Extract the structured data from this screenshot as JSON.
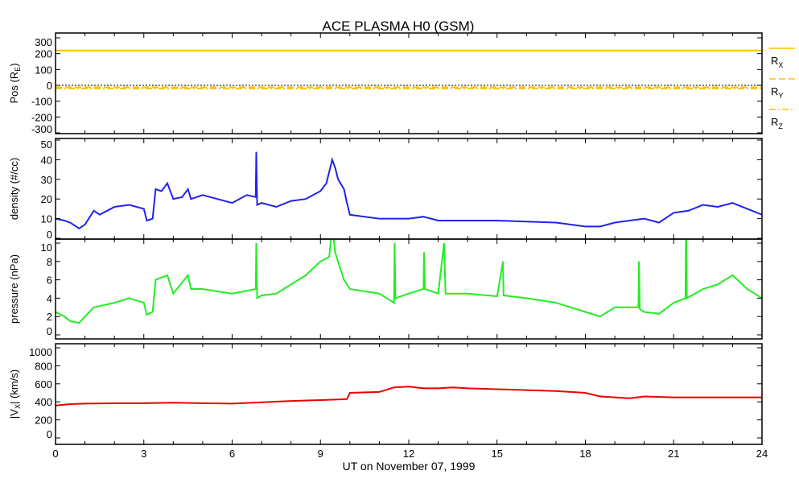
{
  "chart_data": {
    "type": "line",
    "title": "ACE PLASMA H0 (GSM)",
    "xlabel": "UT on November 07, 1999",
    "xlim": [
      0,
      24
    ],
    "xticks": [
      0,
      3,
      6,
      9,
      12,
      15,
      18,
      21,
      24
    ],
    "panels": [
      {
        "id": "position",
        "ylabel": {
          "pre": "Pos (R",
          "sub": "E",
          "post": ")"
        },
        "ylim": [
          -330,
          330
        ],
        "yticks": [
          -300,
          -200,
          -100,
          0,
          100,
          200,
          300
        ],
        "zero_line": true,
        "legend": [
          {
            "main": "R",
            "sub": "X",
            "dash": "solid"
          },
          {
            "main": "R",
            "sub": "Y",
            "dash": "dashed"
          },
          {
            "main": "R",
            "sub": "Z",
            "dash": "dashdot"
          }
        ],
        "series": [
          {
            "name": "Rx",
            "color": "#ffc000",
            "dash": "solid",
            "x": [
              0,
              24
            ],
            "y": [
              220,
              220
            ]
          },
          {
            "name": "Ry",
            "color": "#ffc000",
            "dash": "dashed",
            "x": [
              0,
              24
            ],
            "y": [
              -12,
              -12
            ]
          },
          {
            "name": "Rz",
            "color": "#ffc000",
            "dash": "dashdot",
            "x": [
              0,
              24
            ],
            "y": [
              -20,
              -20
            ]
          }
        ]
      },
      {
        "id": "density",
        "ylabel": {
          "pre": "density (#/cc)",
          "sub": "",
          "post": ""
        },
        "ylim": [
          0,
          50
        ],
        "yticks": [
          0,
          10,
          20,
          30,
          40,
          50
        ],
        "series": [
          {
            "name": "density",
            "color": "#2222ee",
            "dash": "solid",
            "x": [
              0,
              0.3,
              0.5,
              0.8,
              1,
              1.3,
              1.5,
              2,
              2.5,
              3,
              3.1,
              3.3,
              3.4,
              3.6,
              3.8,
              4,
              4.3,
              4.5,
              4.6,
              5,
              5.5,
              6,
              6.5,
              6.8,
              6.82,
              6.85,
              7,
              7.5,
              8,
              8.5,
              9,
              9.2,
              9.4,
              9.5,
              9.6,
              9.8,
              9.9,
              10,
              10.5,
              11,
              11.5,
              12,
              12.5,
              13,
              13.5,
              14,
              15,
              16,
              17,
              18,
              18.5,
              19,
              19.5,
              20,
              20.5,
              21,
              21.5,
              22,
              22.5,
              23,
              23.5,
              24
            ],
            "y": [
              10,
              9,
              8,
              5,
              7,
              14,
              12,
              16,
              17,
              15,
              9,
              10,
              25,
              24,
              28,
              20,
              21,
              25,
              20,
              22,
              20,
              18,
              22,
              21,
              44,
              17,
              18,
              16,
              19,
              20,
              24,
              28,
              40,
              36,
              30,
              25,
              18,
              12,
              11,
              10,
              10,
              10,
              11,
              9,
              9,
              9,
              9,
              8.5,
              8,
              6,
              6,
              8,
              9,
              10,
              8,
              13,
              14,
              17,
              16,
              18,
              15,
              12
            ]
          }
        ]
      },
      {
        "id": "pressure",
        "ylabel": {
          "pre": "pressure (nPa)",
          "sub": "",
          "post": ""
        },
        "ylim": [
          0,
          10
        ],
        "yticks": [
          0,
          2,
          4,
          6,
          8,
          10
        ],
        "series": [
          {
            "name": "pressure",
            "color": "#22ee22",
            "dash": "solid",
            "x": [
              0,
              0.3,
              0.5,
              0.8,
              1,
              1.3,
              2,
              2.5,
              3,
              3.1,
              3.3,
              3.4,
              3.8,
              4,
              4.5,
              4.6,
              5,
              6,
              6.8,
              6.82,
              6.85,
              7,
              7.5,
              8,
              8.5,
              9,
              9.3,
              9.4,
              9.5,
              9.8,
              10,
              11,
              11.5,
              11.52,
              11.55,
              12,
              12.5,
              12.52,
              12.55,
              13,
              13.2,
              13.25,
              14,
              15,
              15.2,
              15.22,
              16,
              17,
              18,
              18.5,
              19,
              19.8,
              19.82,
              19.85,
              20,
              20.5,
              21,
              21.4,
              21.42,
              21.45,
              22,
              22.5,
              23,
              23.5,
              24
            ],
            "y": [
              2.5,
              2,
              1.5,
              1.3,
              2,
              3,
              3.5,
              4,
              3.5,
              2.2,
              2.5,
              6,
              6.5,
              4.5,
              6.5,
              5,
              5,
              4.5,
              5,
              10,
              4,
              4.3,
              4.5,
              5.5,
              6.5,
              8,
              8.5,
              12,
              9,
              6,
              5,
              4.5,
              3.5,
              10,
              4,
              4.5,
              5,
              9,
              5,
              4.5,
              10,
              4.5,
              4.5,
              4.2,
              8,
              4.3,
              4,
              3.5,
              2.5,
              2,
              3,
              3,
              8,
              2.8,
              2.5,
              2.3,
              3.5,
              4,
              13,
              4,
              5,
              5.5,
              6.5,
              5,
              4
            ]
          }
        ]
      },
      {
        "id": "velocity",
        "ylabel": {
          "pre": "|V",
          "sub": "X",
          "post": "| (km/s)"
        },
        "ylim": [
          0,
          1000
        ],
        "yticks": [
          0,
          200,
          400,
          600,
          800,
          1000
        ],
        "series": [
          {
            "name": "|Vx|",
            "color": "#ee0000",
            "dash": "solid",
            "x": [
              0,
              0.5,
              1,
              2,
              3,
              4,
              5,
              6,
              7,
              8,
              9,
              9.5,
              9.9,
              10,
              11,
              11.5,
              12,
              12.5,
              13,
              13.5,
              14,
              15,
              16,
              17,
              18,
              18.5,
              19,
              19.5,
              20,
              21,
              22,
              23,
              24
            ],
            "y": [
              360,
              375,
              380,
              385,
              385,
              390,
              385,
              380,
              395,
              410,
              420,
              425,
              430,
              500,
              510,
              560,
              570,
              550,
              550,
              560,
              550,
              540,
              530,
              520,
              500,
              460,
              450,
              440,
              460,
              450,
              450,
              450,
              450
            ]
          }
        ]
      }
    ]
  }
}
